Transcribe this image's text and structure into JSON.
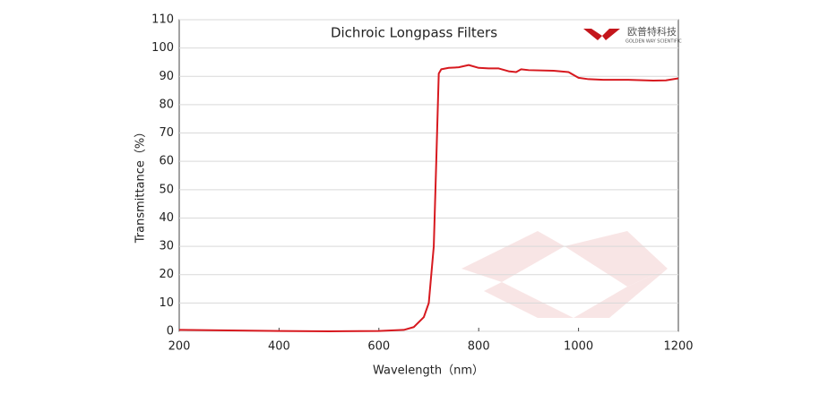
{
  "chart_data": {
    "type": "line",
    "title": "Dichroic Longpass Filters",
    "x_label": "Wavelength（nm）",
    "y_label": "Transmittance（%）",
    "x": [
      200,
      300,
      400,
      500,
      600,
      650,
      670,
      690,
      700,
      710,
      715,
      720,
      725,
      740,
      760,
      780,
      800,
      820,
      840,
      860,
      875,
      885,
      900,
      950,
      980,
      1000,
      1020,
      1050,
      1100,
      1150,
      1175,
      1200
    ],
    "series": [
      {
        "name": "Transmittance",
        "color": "#d7191f",
        "values": [
          0.5,
          0.3,
          0.1,
          0,
          0.1,
          0.5,
          1.5,
          5,
          10,
          30,
          60,
          91,
          92.5,
          93,
          93.2,
          94,
          93,
          92.8,
          92.8,
          91.8,
          91.5,
          92.5,
          92.2,
          92,
          91.5,
          89.5,
          89,
          88.8,
          88.8,
          88.5,
          88.6,
          89.3
        ]
      }
    ],
    "xlim": [
      200,
      1200
    ],
    "xticks": [
      200,
      400,
      600,
      800,
      1000,
      1200
    ],
    "ylim": [
      0,
      110
    ],
    "yticks": [
      0,
      10,
      20,
      30,
      40,
      50,
      60,
      70,
      80,
      90,
      100,
      110
    ],
    "grid": true
  },
  "logo": {
    "name": "欧普特科技",
    "tagline": "GOLDEN WAY SCIENTIFIC"
  }
}
